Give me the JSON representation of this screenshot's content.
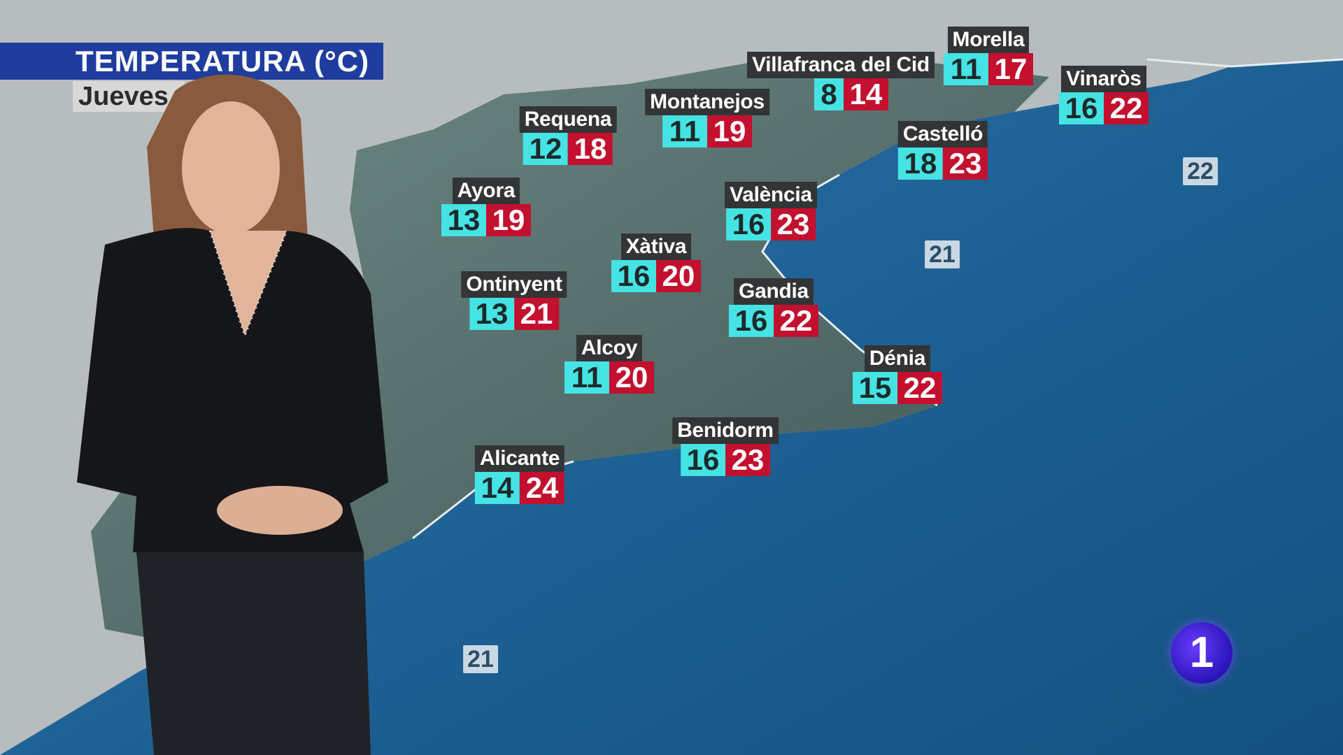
{
  "title": "TEMPERATURA (°C)",
  "day": "Jueves",
  "colors": {
    "title_bar": "#1f3d9e",
    "min_temp": "#45e3e3",
    "max_temp": "#c3102e",
    "label_bg": "#333436",
    "sea": "#1e5d93"
  },
  "cities": [
    {
      "name": "Morella",
      "min": "11",
      "max": "17"
    },
    {
      "name": "Villafranca del Cid",
      "min": "8",
      "max": "14"
    },
    {
      "name": "Vinaròs",
      "min": "16",
      "max": "22"
    },
    {
      "name": "Montanejos",
      "min": "11",
      "max": "19"
    },
    {
      "name": "Requena",
      "min": "12",
      "max": "18"
    },
    {
      "name": "Castelló",
      "min": "18",
      "max": "23"
    },
    {
      "name": "Ayora",
      "min": "13",
      "max": "19"
    },
    {
      "name": "València",
      "min": "16",
      "max": "23"
    },
    {
      "name": "Xàtiva",
      "min": "16",
      "max": "20"
    },
    {
      "name": "Ontinyent",
      "min": "13",
      "max": "21"
    },
    {
      "name": "Gandia",
      "min": "16",
      "max": "22"
    },
    {
      "name": "Alcoy",
      "min": "11",
      "max": "20"
    },
    {
      "name": "Dénia",
      "min": "15",
      "max": "22"
    },
    {
      "name": "Benidorm",
      "min": "16",
      "max": "23"
    },
    {
      "name": "Alicante",
      "min": "14",
      "max": "24"
    }
  ],
  "sea_temps": [
    "22",
    "21",
    "21"
  ],
  "channel_logo": "1"
}
